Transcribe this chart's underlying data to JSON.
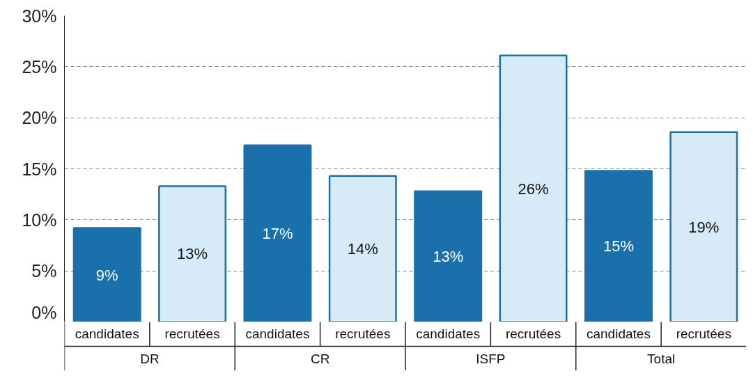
{
  "chart_data": {
    "type": "bar",
    "categories": [
      "DR",
      "CR",
      "ISFP",
      "Total"
    ],
    "series": [
      {
        "name": "candidates",
        "color": "#1a70aa",
        "values": [
          9.2,
          17.3,
          12.8,
          14.8
        ],
        "value_labels": [
          "9%",
          "17%",
          "13%",
          "15%"
        ]
      },
      {
        "name": "recrutées",
        "color": "#d6eaf8",
        "values": [
          13.3,
          14.3,
          26.1,
          18.6
        ],
        "value_labels": [
          "13%",
          "14%",
          "26%",
          "19%"
        ]
      }
    ],
    "ylim": [
      0,
      30
    ],
    "yticks": [
      {
        "value": 0,
        "label": "0%"
      },
      {
        "value": 5,
        "label": "5%"
      },
      {
        "value": 10,
        "label": "10%"
      },
      {
        "value": 15,
        "label": "15%"
      },
      {
        "value": 20,
        "label": "20%"
      },
      {
        "value": 25,
        "label": "25%"
      },
      {
        "value": 30,
        "label": "30%"
      }
    ],
    "grid": "y"
  }
}
